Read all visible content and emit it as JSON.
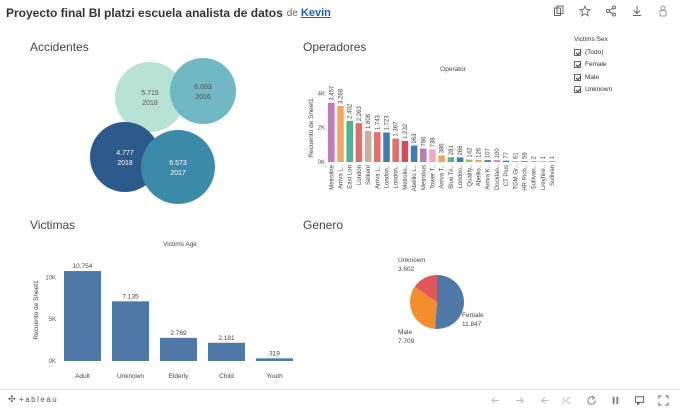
{
  "header": {
    "title": "Proyecto final BI platzi escuela analista de datos",
    "by": "de",
    "author": "Kevin"
  },
  "sheets": {
    "accidentes": "Accidentes",
    "operadores": "Operadores",
    "victimas": "Victimas",
    "genero": "Genero"
  },
  "legend": {
    "title": "Victims Sex",
    "items": [
      {
        "label": "(Todo)",
        "checked": true
      },
      {
        "label": "Female",
        "checked": true
      },
      {
        "label": "Male",
        "checked": true
      },
      {
        "label": "Unknown",
        "checked": true
      }
    ]
  },
  "brand": {
    "text": "+ableau"
  },
  "chart_data": [
    {
      "type": "bubble",
      "title": "Accidentes",
      "points": [
        {
          "label": "5.715",
          "year": "2018",
          "color": "#b8e2d4"
        },
        {
          "label": "6.093",
          "year": "2016",
          "color": "#6fb8c4"
        },
        {
          "label": "4.777",
          "year": "2018",
          "color": "#2c5a8a"
        },
        {
          "label": "6.573",
          "year": "2017",
          "color": "#3b8aa8"
        }
      ]
    },
    {
      "type": "bar",
      "title": "Operator",
      "ylabel": "Recuento de Sheet1",
      "yticks": [
        "4K",
        "2K",
        "0K"
      ],
      "ylim": [
        0,
        4000
      ],
      "categories": [
        "Metroline",
        "Arriva L..",
        "East Lon",
        "London",
        "Selkent",
        "Arriva L..",
        "London..",
        "London..",
        "Metrolin..",
        "Abellio L..",
        "Metrobus",
        "Tower T..",
        "Arriva T..",
        "Blue Tri..",
        "London..",
        "Quality..",
        "Abellio..",
        "Arriva K..",
        "Docklan..",
        "CT Plus",
        "TGM Gr..",
        "HR Rich..",
        "Sullivan..",
        "Lreyhire..",
        "Sullivan"
      ],
      "values": [
        3457,
        3268,
        2402,
        2263,
        1808,
        1743,
        1723,
        1367,
        1232,
        963,
        786,
        738,
        386,
        281,
        266,
        142,
        126,
        107,
        100,
        77,
        61,
        59,
        2,
        1,
        1
      ],
      "value_labels": [
        "3.457",
        "3.268",
        "2.402",
        "2.263",
        "1.808",
        "1.743",
        "1.723",
        "1.367",
        "1.232",
        "963",
        "786",
        "738",
        "386",
        "281",
        "266",
        "142",
        "126",
        "107",
        "100",
        "77",
        "61",
        "59",
        "2",
        "1",
        "1"
      ],
      "colors": [
        "#c27bbb",
        "#f5a65b",
        "#4fb38f",
        "#e0706e",
        "#c7b09d",
        "#e0706e",
        "#3d7db5",
        "#e0706e",
        "#d14b5d",
        "#3d7db5",
        "#b97fb5",
        "#f2a7c8",
        "#f0a35a",
        "#4fb38f",
        "#3d7db5",
        "#9cc25f",
        "#f5a65b",
        "#3d7db5",
        "#c27bbb",
        "#3d7db5",
        "#f5a65b",
        "#4fb38f",
        "#3d7db5",
        "#e0706e",
        "#3d7db5"
      ]
    },
    {
      "type": "bar",
      "title": "Victims Age",
      "ylabel": "Recuento de Sheet1",
      "yticks": [
        "10K",
        "5K",
        "0K"
      ],
      "ylim": [
        0,
        11000
      ],
      "categories": [
        "Adult",
        "Unknown",
        "Elderly",
        "Child",
        "Youth"
      ],
      "values": [
        10754,
        7135,
        2769,
        2181,
        319
      ],
      "value_labels": [
        "10.754",
        "7.135",
        "2.769",
        "2.181",
        "319"
      ],
      "color": "#4e79a7"
    },
    {
      "type": "pie",
      "title": "Genero",
      "slices": [
        {
          "name": "Female",
          "value": 11847,
          "label": "11.847",
          "color": "#4e79a7"
        },
        {
          "name": "Male",
          "value": 7709,
          "label": "7.709",
          "color": "#f28e2b"
        },
        {
          "name": "Unknown",
          "value": 3602,
          "label": "3.602",
          "color": "#e15759"
        }
      ]
    }
  ]
}
